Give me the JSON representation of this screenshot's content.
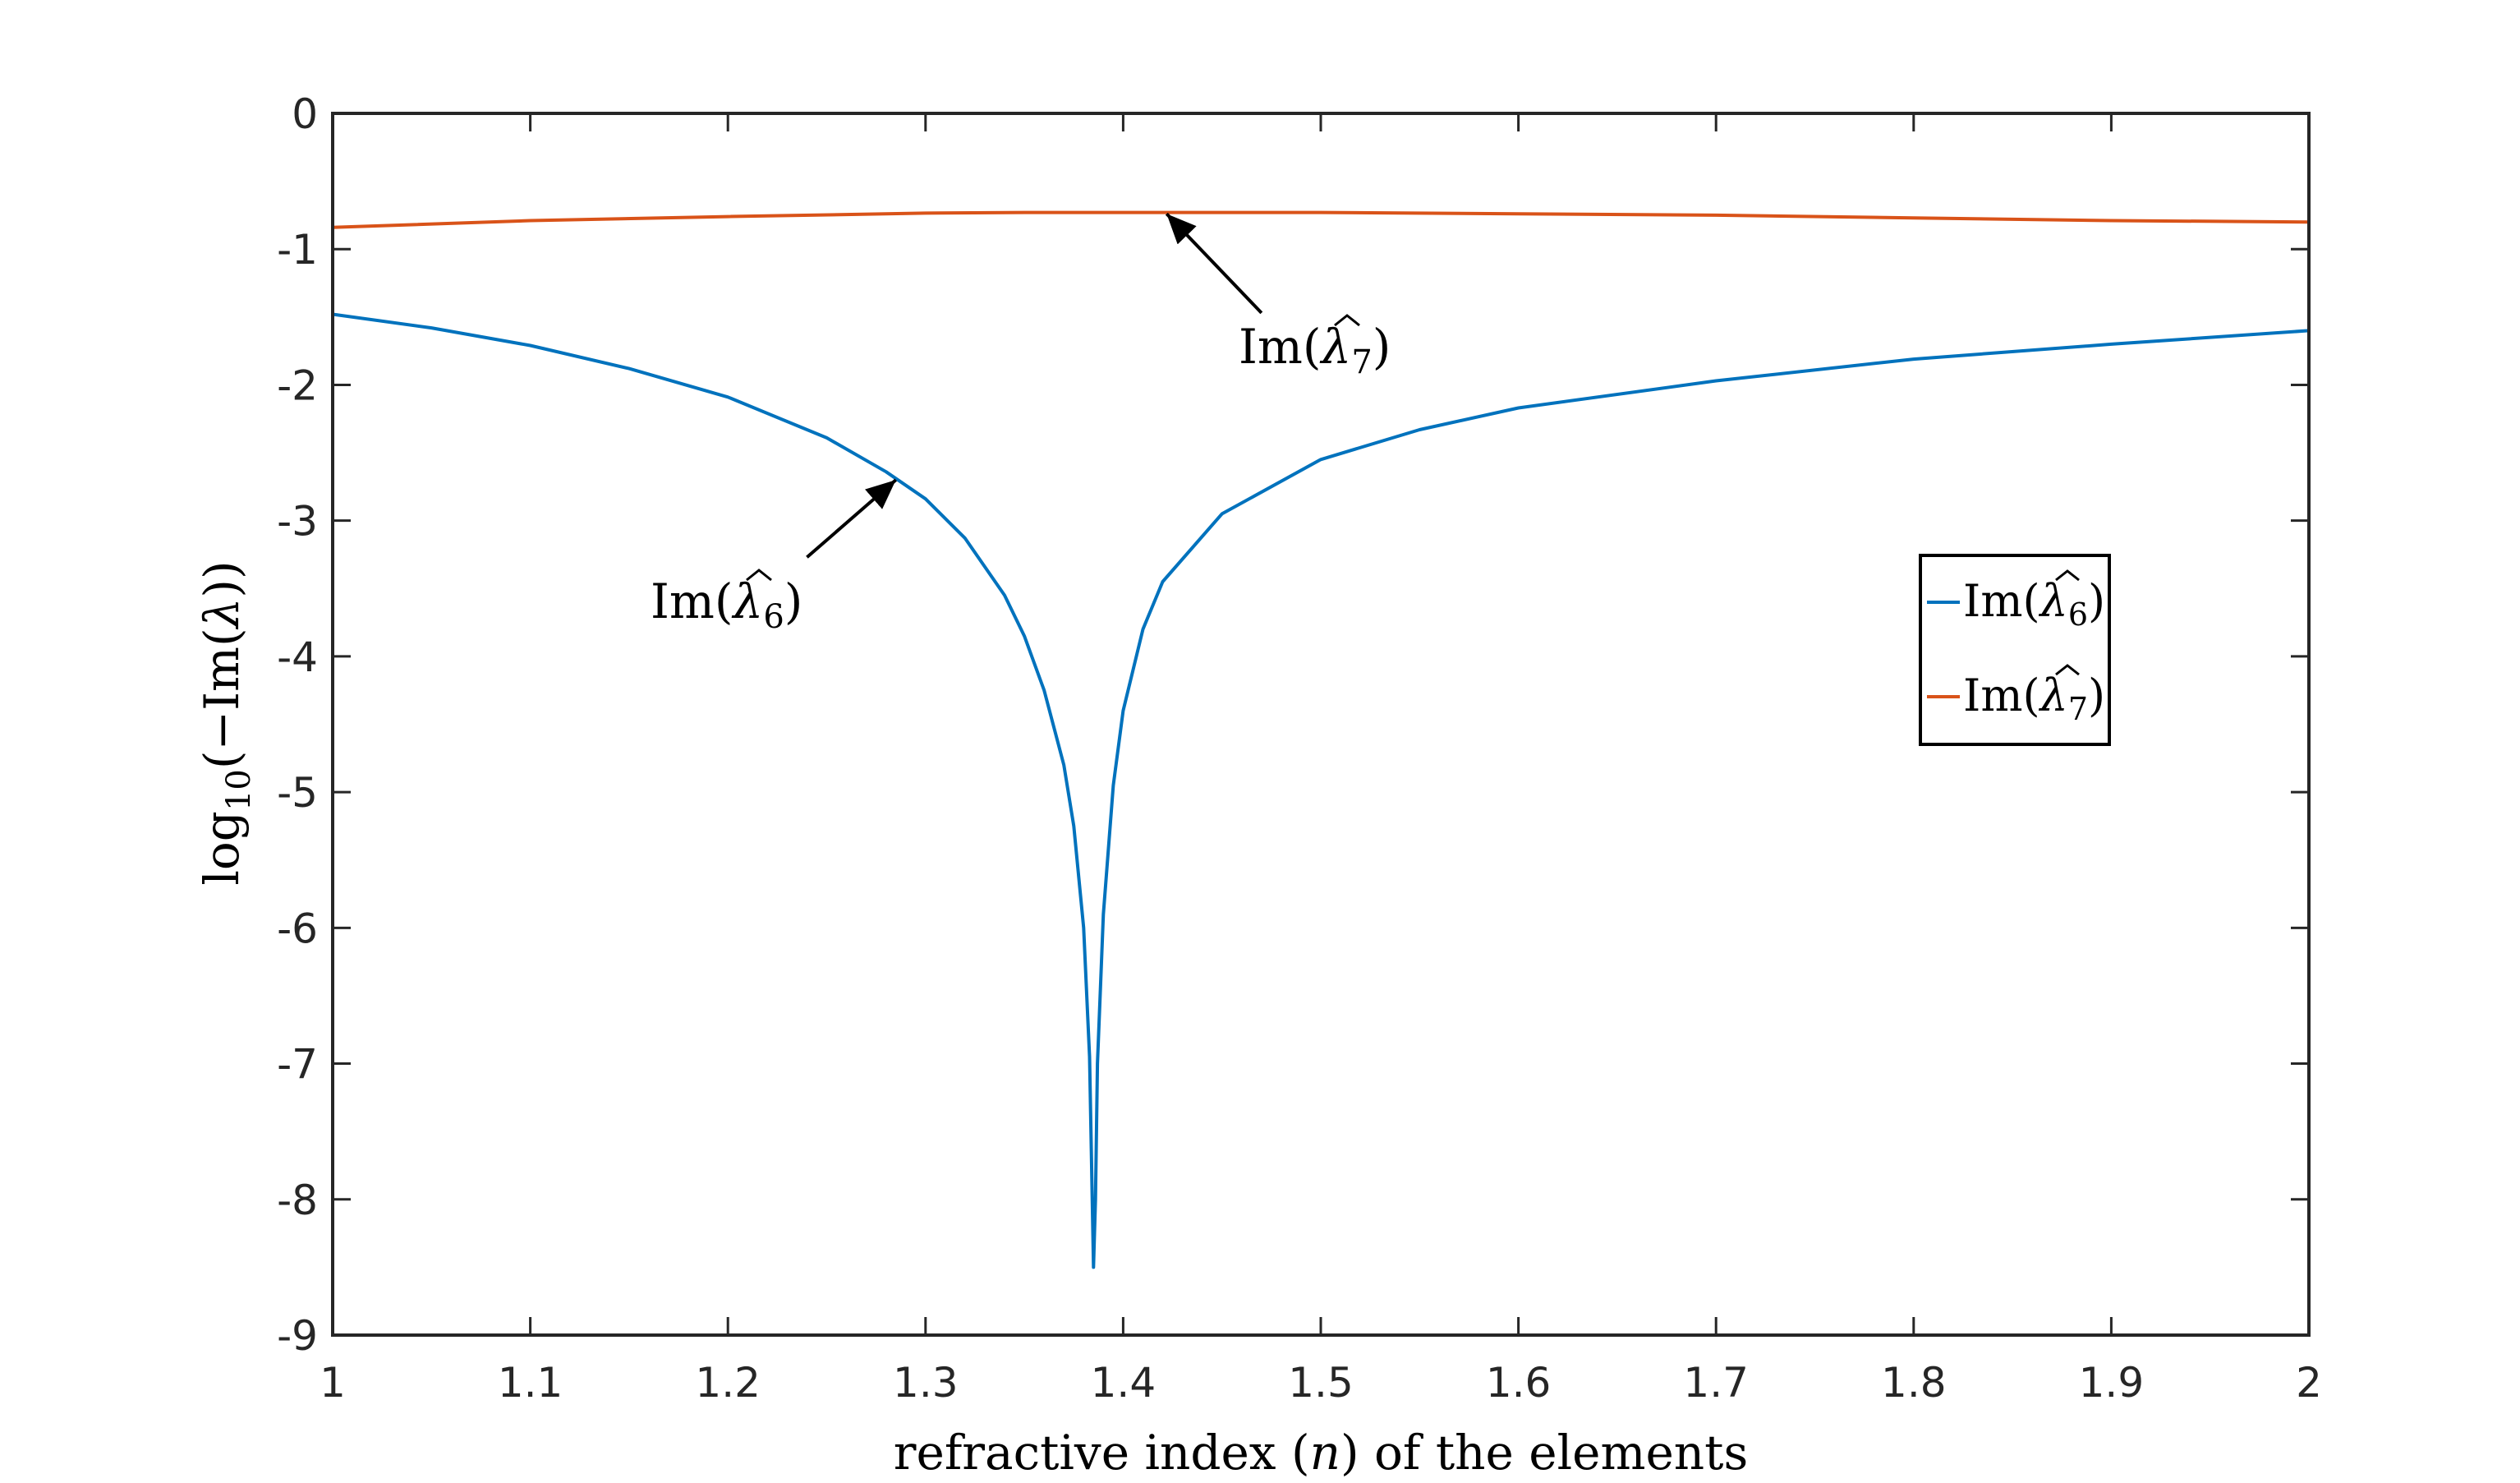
{
  "chart_data": {
    "type": "line",
    "xlabel_parts": {
      "before": "refractive index (",
      "var": "n",
      "after": ") of the elements"
    },
    "ylabel_parts": {
      "pre": "log",
      "sub": "10",
      "post": "(−Im(",
      "var": "λ",
      "end": "))"
    },
    "xlim": [
      1,
      2
    ],
    "ylim": [
      -9,
      0
    ],
    "xticks": [
      1,
      1.1,
      1.2,
      1.3,
      1.4,
      1.5,
      1.6,
      1.7,
      1.8,
      1.9,
      2
    ],
    "xtick_labels": [
      "1",
      "1.1",
      "1.2",
      "1.3",
      "1.4",
      "1.5",
      "1.6",
      "1.7",
      "1.8",
      "1.9",
      "2"
    ],
    "yticks": [
      0,
      -1,
      -2,
      -3,
      -4,
      -5,
      -6,
      -7,
      -8,
      -9
    ],
    "ytick_labels": [
      "0",
      "-1",
      "-2",
      "-3",
      "-4",
      "-5",
      "-6",
      "-7",
      "-8",
      "-9"
    ],
    "grid": false,
    "legend_position": "right, mid-height",
    "series": [
      {
        "name": "Im(λ̂6)",
        "label_parts": {
          "pre": "Im(",
          "var": "λ",
          "sub": "6",
          "post": ")"
        },
        "color": "#0072BD",
        "x": [
          1.0,
          1.05,
          1.1,
          1.15,
          1.2,
          1.25,
          1.28,
          1.3,
          1.32,
          1.34,
          1.35,
          1.36,
          1.37,
          1.375,
          1.38,
          1.383,
          1.385,
          1.386,
          1.387,
          1.39,
          1.395,
          1.4,
          1.41,
          1.42,
          1.45,
          1.5,
          1.55,
          1.6,
          1.7,
          1.8,
          1.9,
          2.0
        ],
        "y": [
          -1.48,
          -1.58,
          -1.71,
          -1.88,
          -2.09,
          -2.39,
          -2.64,
          -2.84,
          -3.13,
          -3.55,
          -3.85,
          -4.25,
          -4.8,
          -5.25,
          -6.0,
          -6.95,
          -8.5,
          -8.0,
          -7.0,
          -5.9,
          -4.95,
          -4.4,
          -3.8,
          -3.45,
          -2.95,
          -2.55,
          -2.33,
          -2.17,
          -1.97,
          -1.81,
          -1.7,
          -1.6
        ]
      },
      {
        "name": "Im(λ̂7)",
        "label_parts": {
          "pre": "Im(",
          "var": "λ",
          "sub": "7",
          "post": ")"
        },
        "color": "#D95319",
        "x": [
          1.0,
          1.1,
          1.2,
          1.3,
          1.35,
          1.4,
          1.45,
          1.5,
          1.6,
          1.7,
          1.8,
          1.9,
          2.0
        ],
        "y": [
          -0.84,
          -0.79,
          -0.76,
          -0.735,
          -0.73,
          -0.73,
          -0.73,
          -0.73,
          -0.74,
          -0.75,
          -0.77,
          -0.79,
          -0.8
        ]
      }
    ],
    "annotations": [
      {
        "series": 1,
        "from": [
          1.47,
          -1.47
        ],
        "to": [
          1.422,
          -0.74
        ]
      },
      {
        "series": 0,
        "from": [
          1.24,
          -3.27
        ],
        "to": [
          1.285,
          -2.7
        ]
      }
    ]
  }
}
